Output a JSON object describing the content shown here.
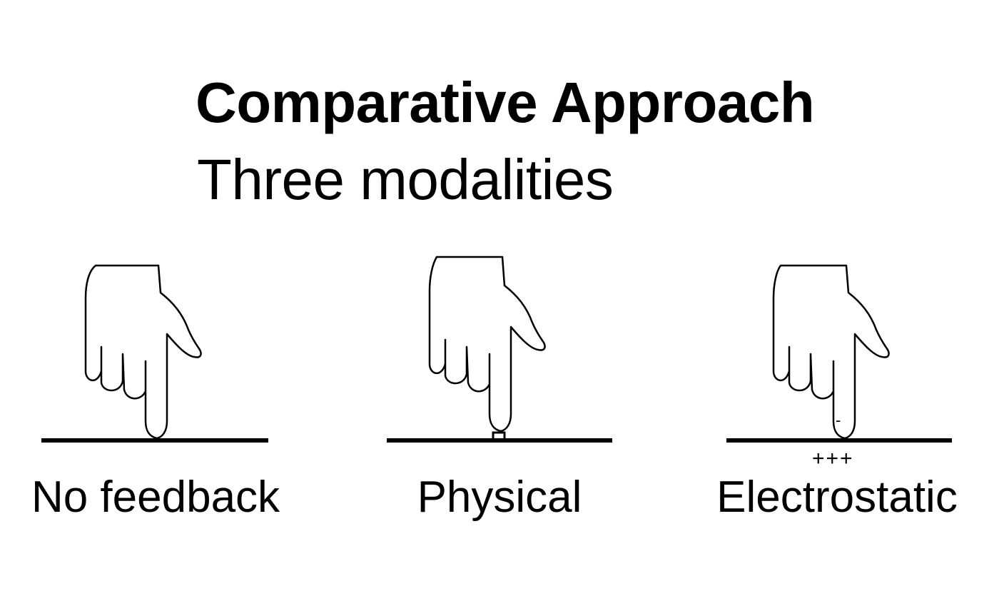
{
  "slide": {
    "title": "Comparative Approach",
    "subtitle": "Three modalities"
  },
  "modalities": [
    {
      "caption": "No feedback",
      "icon": "pointing-hand-icon"
    },
    {
      "caption": "Physical",
      "icon": "pointing-hand-icon",
      "marker": "bump-icon"
    },
    {
      "caption": "Electrostatic",
      "icon": "pointing-hand-icon",
      "finger_charge": "-",
      "surface_charge": "+++"
    }
  ]
}
